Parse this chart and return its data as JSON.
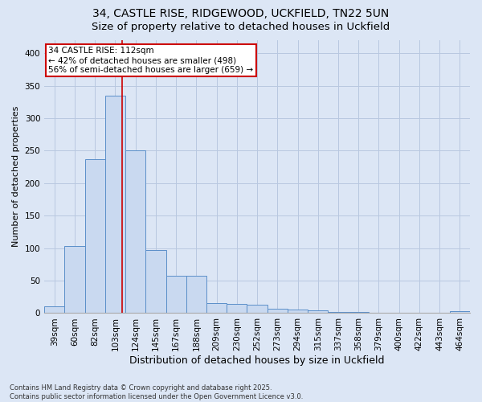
{
  "title_line1": "34, CASTLE RISE, RIDGEWOOD, UCKFIELD, TN22 5UN",
  "title_line2": "Size of property relative to detached houses in Uckfield",
  "xlabel": "Distribution of detached houses by size in Uckfield",
  "ylabel": "Number of detached properties",
  "categories": [
    "39sqm",
    "60sqm",
    "82sqm",
    "103sqm",
    "124sqm",
    "145sqm",
    "167sqm",
    "188sqm",
    "209sqm",
    "230sqm",
    "252sqm",
    "273sqm",
    "294sqm",
    "315sqm",
    "337sqm",
    "358sqm",
    "379sqm",
    "400sqm",
    "422sqm",
    "443sqm",
    "464sqm"
  ],
  "values": [
    10,
    103,
    237,
    335,
    250,
    97,
    57,
    57,
    15,
    14,
    13,
    7,
    6,
    4,
    2,
    2,
    0,
    0,
    1,
    0,
    3
  ],
  "bar_color": "#c9d9f0",
  "bar_edge_color": "#5b8fc9",
  "vline_x_index": 3.35,
  "vline_color": "#cc0000",
  "annotation_text": "34 CASTLE RISE: 112sqm\n← 42% of detached houses are smaller (498)\n56% of semi-detached houses are larger (659) →",
  "annotation_box_color": "white",
  "annotation_box_edge_color": "#cc0000",
  "ylim": [
    0,
    420
  ],
  "yticks": [
    0,
    50,
    100,
    150,
    200,
    250,
    300,
    350,
    400
  ],
  "grid_color": "#b8c8e0",
  "bg_color": "#dce6f5",
  "footer_text": "Contains HM Land Registry data © Crown copyright and database right 2025.\nContains public sector information licensed under the Open Government Licence v3.0.",
  "title_fontsize": 10,
  "subtitle_fontsize": 9.5,
  "xlabel_fontsize": 9,
  "ylabel_fontsize": 8,
  "tick_fontsize": 7.5,
  "annotation_fontsize": 7.5,
  "footer_fontsize": 6
}
